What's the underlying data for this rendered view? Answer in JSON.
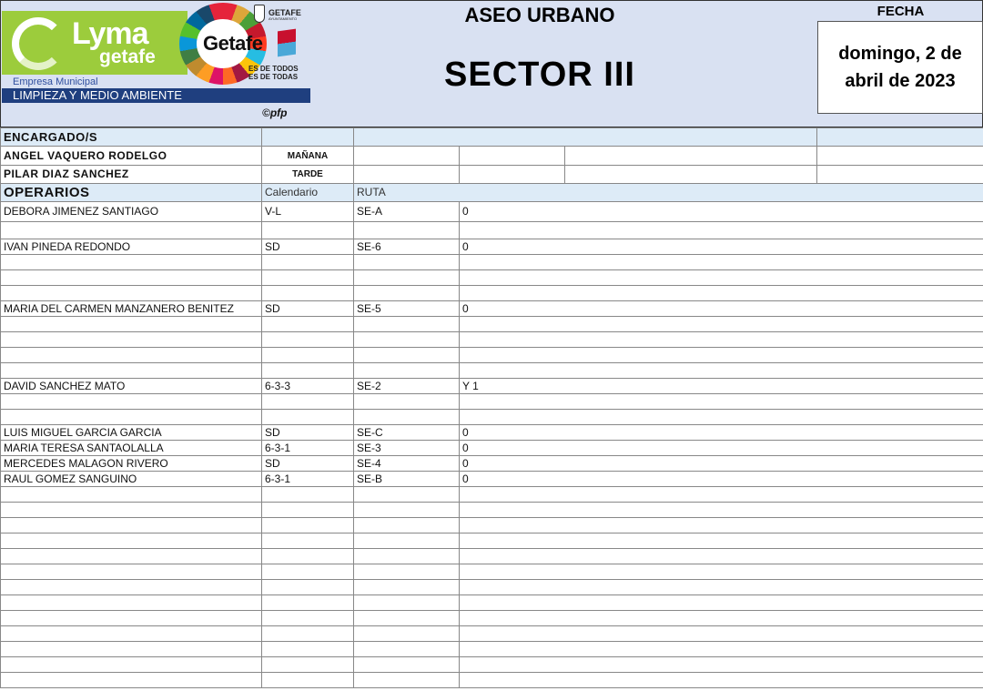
{
  "logo": {
    "brand": "Lyma",
    "brand_sub": "getafe",
    "city_logo": "Getafe",
    "ayuntamiento": "GETAFE",
    "ayuntamiento_sub": "AYUNTAMIENTO",
    "motto_1": "ES DE TODOS",
    "motto_2": "ES DE TODAS",
    "empresa": "Empresa Municipal",
    "department": "LIMPIEZA Y MEDIO AMBIENTE",
    "credit": "©pfp"
  },
  "header": {
    "title": "ASEO URBANO",
    "sector": "SECTOR III",
    "fecha_label": "FECHA",
    "fecha_value": "domingo, 2 de abril de 2023"
  },
  "encargados": {
    "label": "ENCARGADO/S",
    "rows": [
      {
        "name": "ANGEL VAQUERO RODELGO",
        "turno": "MAÑANA"
      },
      {
        "name": "PILAR DIAZ SANCHEZ",
        "turno": "TARDE"
      }
    ]
  },
  "operarios": {
    "label": "OPERARIOS",
    "col_calendario": "Calendario",
    "col_ruta": "RUTA",
    "rows": [
      {
        "name": "DEBORA JIMENEZ SANTIAGO",
        "calendario": "V-L",
        "ruta": "SE-A",
        "obs": "0"
      },
      {},
      {
        "name": "IVAN PINEDA REDONDO",
        "calendario": "SD",
        "ruta": "SE-6",
        "obs": "0"
      },
      {},
      {},
      {},
      {
        "name": "MARIA DEL CARMEN MANZANERO BENITEZ",
        "calendario": "SD",
        "ruta": "SE-5",
        "obs": "0"
      },
      {},
      {},
      {},
      {},
      {
        "name": "DAVID SANCHEZ MATO",
        "calendario": "6-3-3",
        "ruta": "SE-2",
        "obs": "Y 1"
      },
      {},
      {},
      {
        "name": "LUIS MIGUEL GARCIA GARCIA",
        "calendario": "SD",
        "ruta": "SE-C",
        "obs": "0"
      },
      {
        "name": "MARIA TERESA SANTAOLALLA",
        "calendario": "6-3-1",
        "ruta": "SE-3",
        "obs": "0"
      },
      {
        "name": "MERCEDES MALAGON RIVERO",
        "calendario": "SD",
        "ruta": "SE-4",
        "obs": "0"
      },
      {
        "name": "RAUL GOMEZ SANGUINO",
        "calendario": "6-3-1",
        "ruta": "SE-B",
        "obs": "0"
      },
      {},
      {},
      {},
      {},
      {},
      {},
      {},
      {},
      {},
      {},
      {},
      {},
      {}
    ]
  }
}
